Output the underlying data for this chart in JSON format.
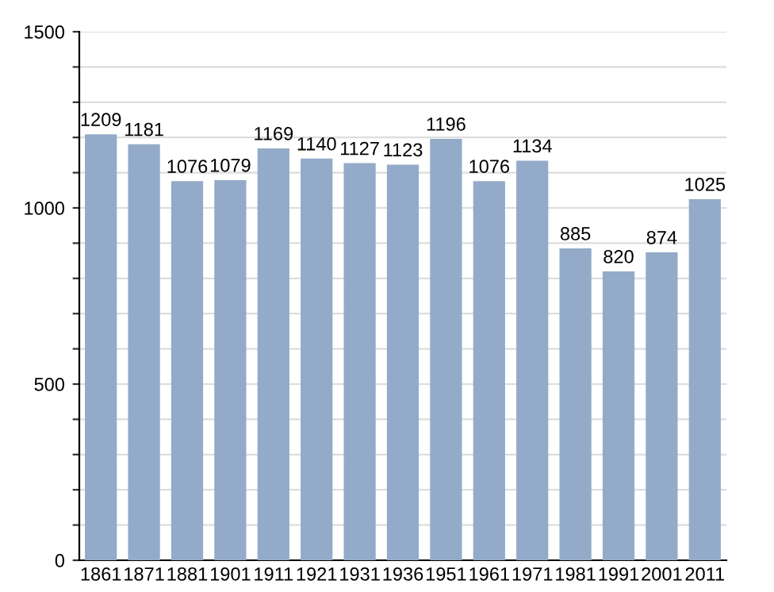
{
  "chart_data": {
    "type": "bar",
    "categories": [
      "1861",
      "1871",
      "1881",
      "1901",
      "1911",
      "1921",
      "1931",
      "1936",
      "1951",
      "1961",
      "1971",
      "1981",
      "1991",
      "2001",
      "2011"
    ],
    "values": [
      1209,
      1181,
      1076,
      1079,
      1169,
      1140,
      1127,
      1123,
      1196,
      1076,
      1134,
      885,
      820,
      874,
      1025
    ],
    "color": "#93abc8",
    "data_labels": true,
    "grid": "y",
    "ylim": [
      0,
      1500
    ],
    "yticks": [
      0,
      {
        "value": 100,
        "label": null
      },
      {
        "value": 200,
        "label": null
      },
      {
        "value": 300,
        "label": null
      },
      {
        "value": 400,
        "label": null
      },
      500,
      {
        "value": 600,
        "label": null
      },
      {
        "value": 700,
        "label": null
      },
      {
        "value": 800,
        "label": null
      },
      {
        "value": 900,
        "label": null
      },
      1000,
      {
        "value": 1100,
        "label": null
      },
      {
        "value": 1200,
        "label": null
      },
      {
        "value": 1300,
        "label": null
      },
      {
        "value": 1400,
        "label": null
      },
      1500
    ]
  }
}
